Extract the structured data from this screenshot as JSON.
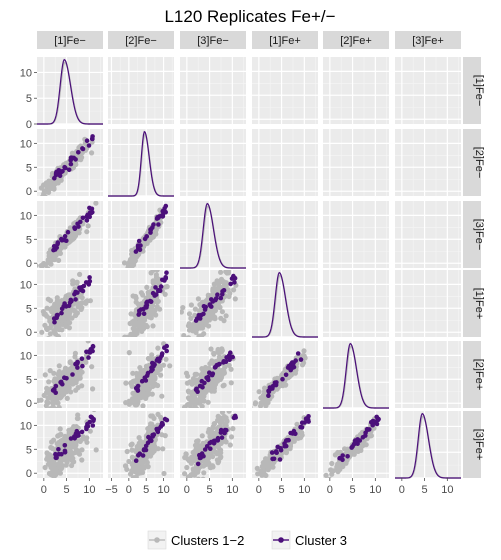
{
  "chart_data": {
    "type": "scatter",
    "title": "L120 Replicates Fe+/−",
    "variables": [
      "[1]Fe−",
      "[2]Fe−",
      "[3]Fe−",
      "[1]Fe+",
      "[2]Fe+",
      "[3]Fe+"
    ],
    "layout": "pairs matrix: lower panels scatter, diagonal panels density, upper panels empty",
    "panel_x_ticks": [
      [
        0,
        5,
        10
      ],
      [
        -5,
        0,
        5,
        10
      ],
      [
        0,
        5,
        10
      ],
      [
        0,
        5,
        10
      ],
      [
        0,
        5,
        10
      ],
      [
        0,
        5,
        10
      ]
    ],
    "panel_xlim": [
      [
        -1.5,
        13
      ],
      [
        -6,
        13
      ],
      [
        -1.5,
        13
      ],
      [
        -1.5,
        13
      ],
      [
        -1.5,
        13
      ],
      [
        -1.5,
        13
      ]
    ],
    "y_ticks": [
      0,
      5,
      10
    ],
    "ylim": [
      -1,
      13
    ],
    "diag_ylim": [
      0,
      13
    ],
    "density_peak": 12.5,
    "density_center": 4.5,
    "density_sd": 0.9,
    "grid": true,
    "legend_position": "bottom",
    "series": [
      {
        "name": "Clusters 1−2",
        "color": "#b8b8b8"
      },
      {
        "name": "Cluster 3",
        "color": "#4b0f7a"
      }
    ]
  }
}
